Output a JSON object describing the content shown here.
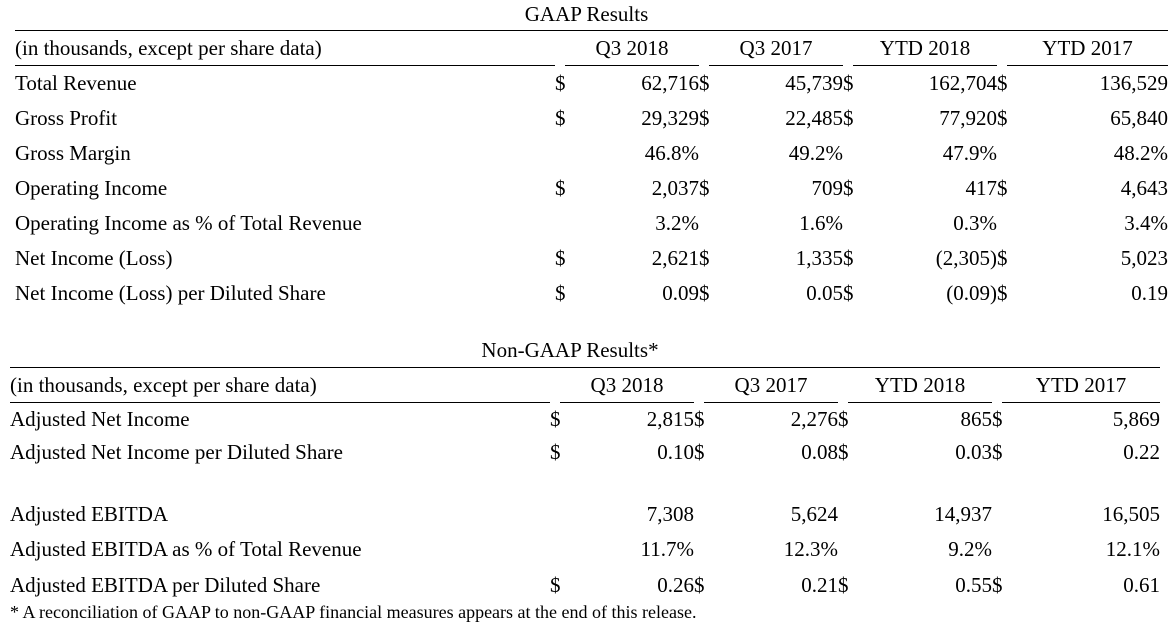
{
  "gaap": {
    "title": "GAAP Results",
    "header": {
      "label": "(in thousands, except per share data)",
      "columns": [
        "Q3 2018",
        "Q3 2017",
        "YTD 2018",
        "YTD 2017"
      ]
    },
    "rows": [
      {
        "label": "Total Revenue",
        "cells": [
          {
            "cur": "$",
            "val": "62,716"
          },
          {
            "cur": "$",
            "val": "45,739"
          },
          {
            "cur": "$",
            "val": "162,704"
          },
          {
            "cur": "$",
            "val": "136,529"
          }
        ]
      },
      {
        "label": "Gross Profit",
        "cells": [
          {
            "cur": "$",
            "val": "29,329"
          },
          {
            "cur": "$",
            "val": "22,485"
          },
          {
            "cur": "$",
            "val": "77,920"
          },
          {
            "cur": "$",
            "val": "65,840"
          }
        ]
      },
      {
        "label": "Gross Margin",
        "cells": [
          {
            "cur": "",
            "val": "46.8%"
          },
          {
            "cur": "",
            "val": "49.2%"
          },
          {
            "cur": "",
            "val": "47.9%"
          },
          {
            "cur": "",
            "val": "48.2%"
          }
        ]
      },
      {
        "label": "Operating Income",
        "cells": [
          {
            "cur": "$",
            "val": "2,037"
          },
          {
            "cur": "$",
            "val": "709"
          },
          {
            "cur": "$",
            "val": "417"
          },
          {
            "cur": "$",
            "val": "4,643"
          }
        ]
      },
      {
        "label": "Operating Income as % of Total Revenue",
        "cells": [
          {
            "cur": "",
            "val": "3.2%"
          },
          {
            "cur": "",
            "val": "1.6%"
          },
          {
            "cur": "",
            "val": "0.3%"
          },
          {
            "cur": "",
            "val": "3.4%"
          }
        ]
      },
      {
        "label": "Net Income (Loss)",
        "cells": [
          {
            "cur": "$",
            "val": "2,621"
          },
          {
            "cur": "$",
            "val": "1,335"
          },
          {
            "cur": "$",
            "val": "(2,305)"
          },
          {
            "cur": "$",
            "val": "5,023"
          }
        ]
      },
      {
        "label": "Net Income (Loss) per Diluted Share",
        "cells": [
          {
            "cur": "$",
            "val": "0.09"
          },
          {
            "cur": "$",
            "val": "0.05"
          },
          {
            "cur": "$",
            "val": "(0.09)"
          },
          {
            "cur": "$",
            "val": "0.19"
          }
        ]
      }
    ]
  },
  "non_gaap": {
    "title": "Non-GAAP Results*",
    "header": {
      "label": "(in thousands, except per share data)",
      "columns": [
        "Q3 2018",
        "Q3 2017",
        "YTD 2018",
        "YTD 2017"
      ]
    },
    "rows": [
      {
        "label": "Adjusted Net Income",
        "cells": [
          {
            "cur": "$",
            "val": "2,815"
          },
          {
            "cur": "$",
            "val": "2,276"
          },
          {
            "cur": "$",
            "val": "865"
          },
          {
            "cur": "$",
            "val": "5,869"
          }
        ]
      },
      {
        "label": "Adjusted Net Income per Diluted Share",
        "cells": [
          {
            "cur": "$",
            "val": "0.10"
          },
          {
            "cur": "$",
            "val": "0.08"
          },
          {
            "cur": "$",
            "val": "0.03"
          },
          {
            "cur": "$",
            "val": "0.22"
          }
        ]
      },
      {
        "label": "Adjusted EBITDA",
        "cells": [
          {
            "cur": "",
            "val": "7,308"
          },
          {
            "cur": "",
            "val": "5,624"
          },
          {
            "cur": "",
            "val": "14,937"
          },
          {
            "cur": "",
            "val": "16,505"
          }
        ]
      },
      {
        "label": "Adjusted EBITDA as % of Total Revenue",
        "cells": [
          {
            "cur": "",
            "val": "11.7%"
          },
          {
            "cur": "",
            "val": "12.3%"
          },
          {
            "cur": "",
            "val": "9.2%"
          },
          {
            "cur": "",
            "val": "12.1%"
          }
        ]
      },
      {
        "label": "Adjusted EBITDA per Diluted Share",
        "cells": [
          {
            "cur": "$",
            "val": "0.26"
          },
          {
            "cur": "$",
            "val": "0.21"
          },
          {
            "cur": "$",
            "val": "0.55"
          },
          {
            "cur": "$",
            "val": "0.61"
          }
        ]
      }
    ]
  },
  "footnote": "* A reconciliation of GAAP to non-GAAP financial measures appears at the end of this release."
}
